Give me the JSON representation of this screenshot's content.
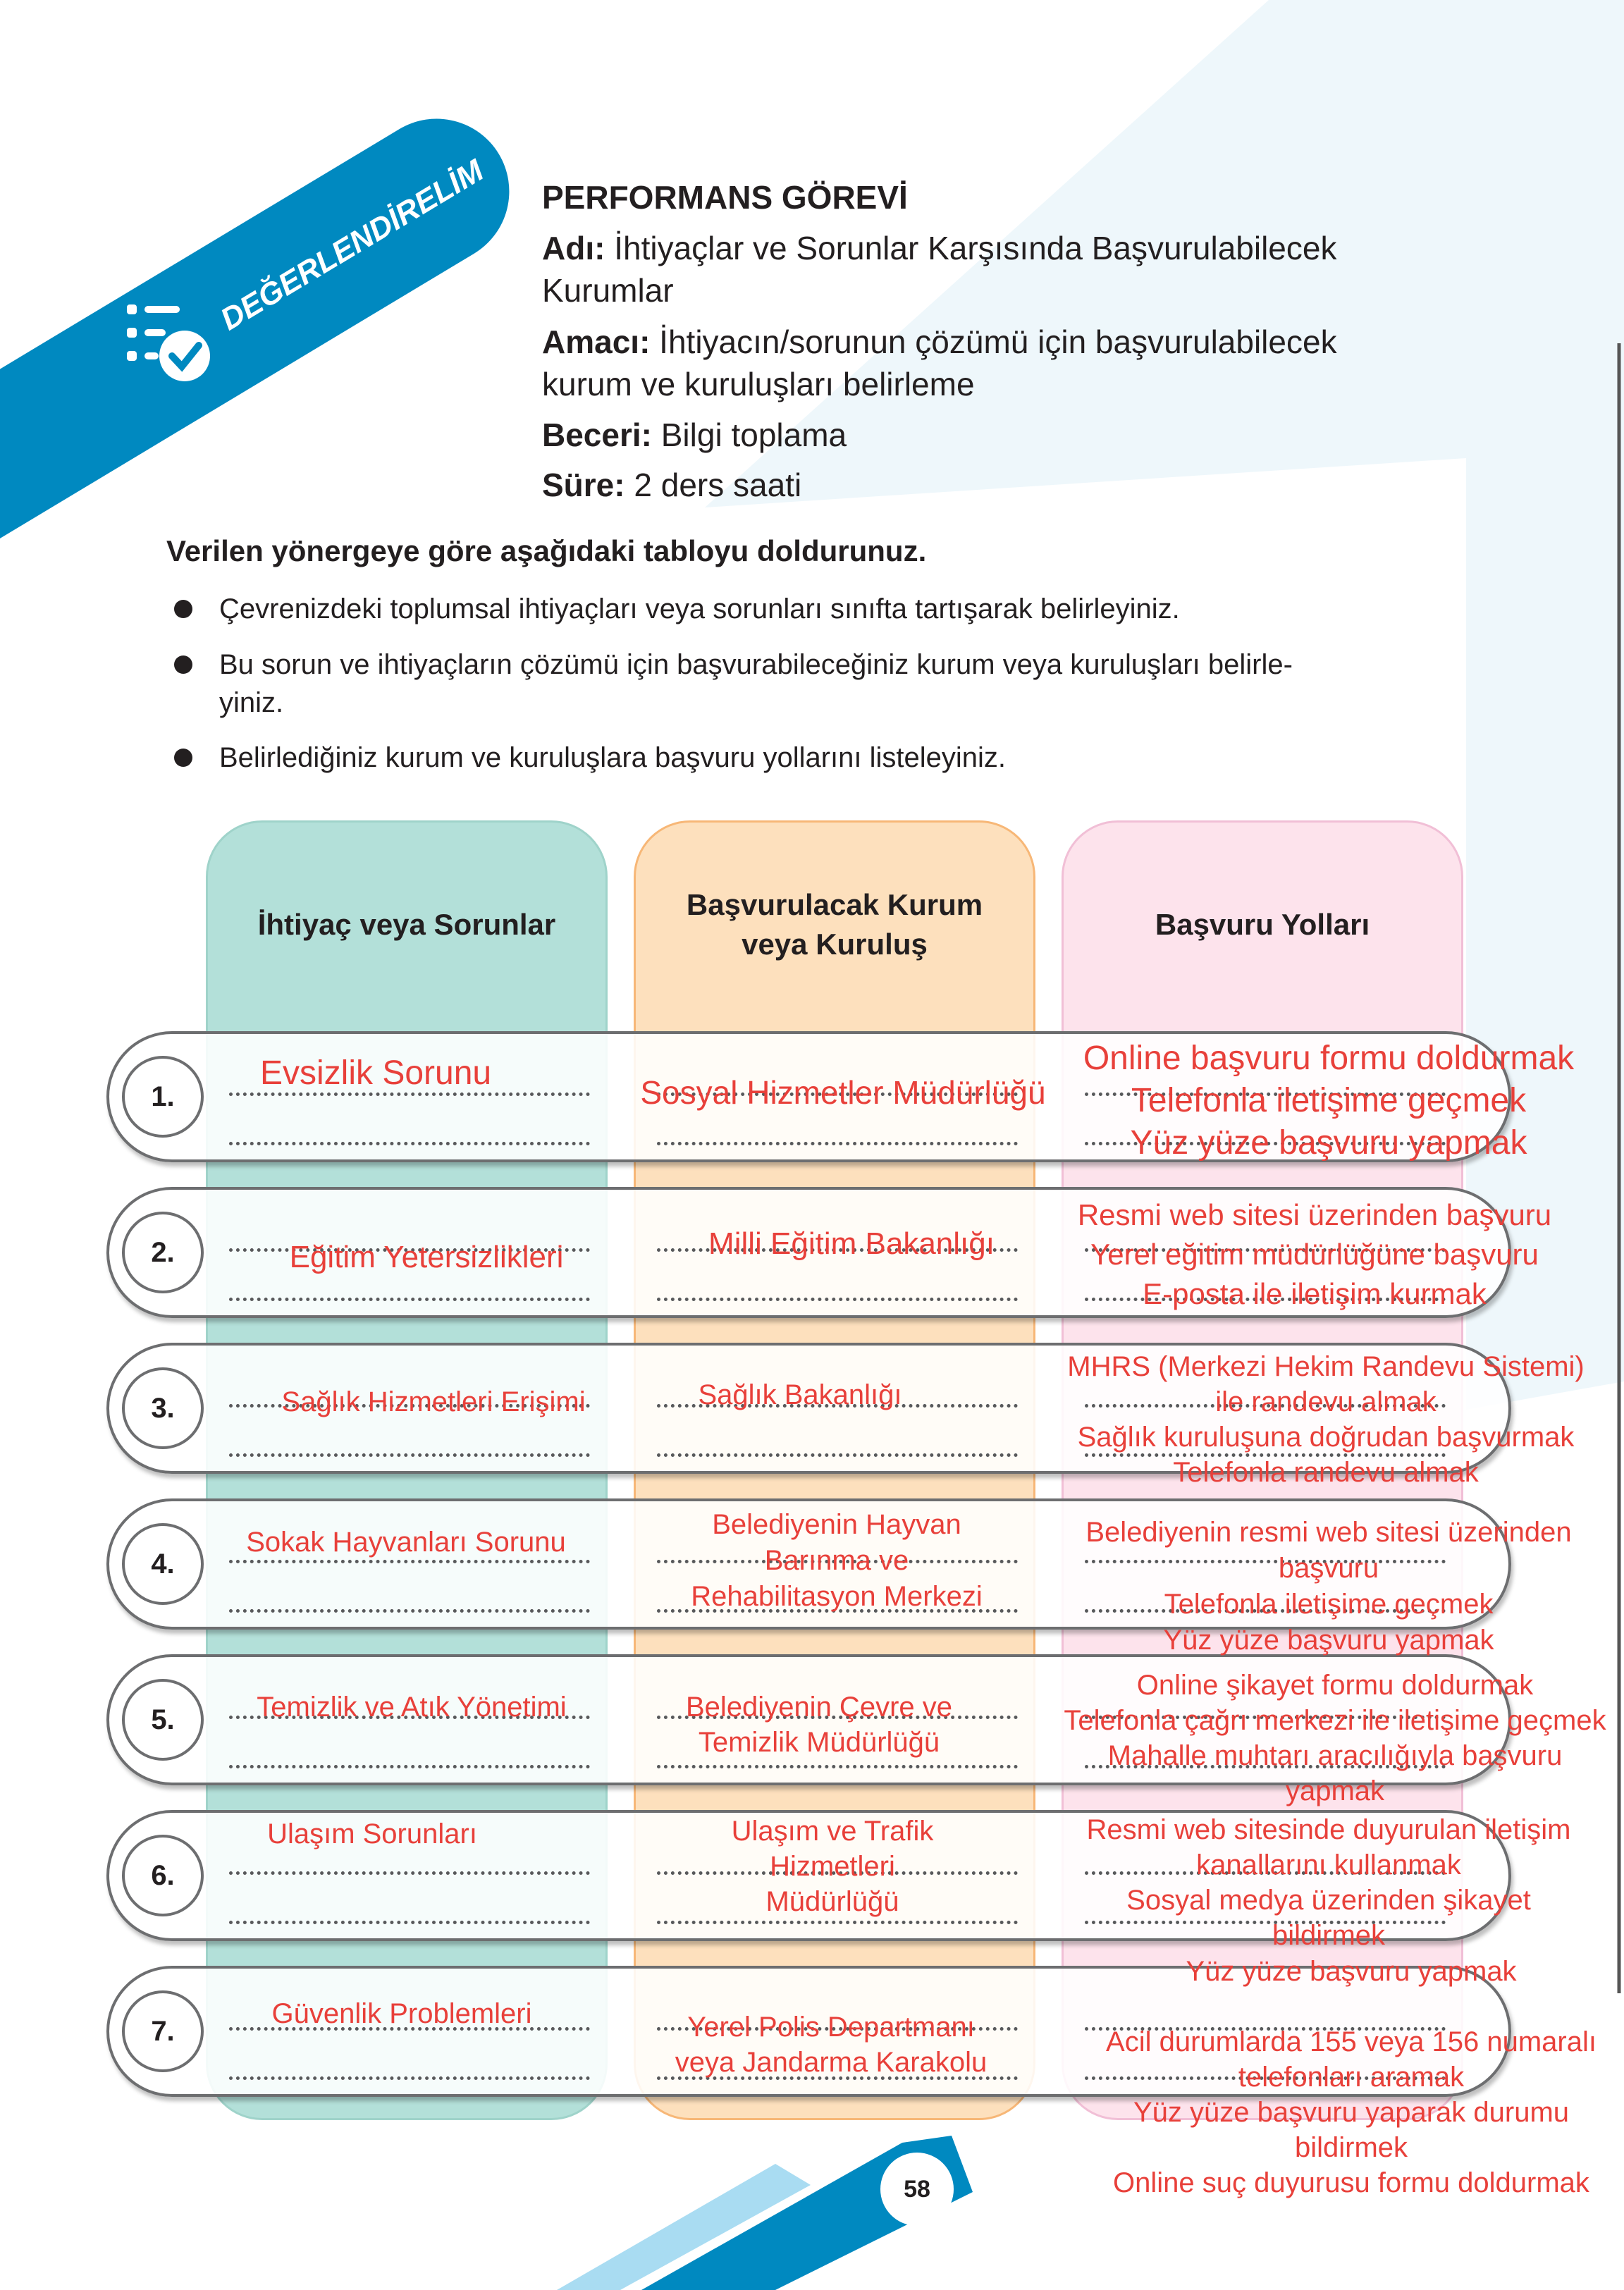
{
  "banner": {
    "label": "DEĞERLENDİRELİM",
    "icon": "checklist-icon",
    "color": "#0089c0"
  },
  "task": {
    "title": "PERFORMANS GÖREVİ",
    "name_label": "Adı:",
    "name_value": "İhtiyaçlar ve Sorunlar Karşısında Başvurulabilecek",
    "name_value_2": "Kurumlar",
    "purpose_label": "Amacı:",
    "purpose_value": "İhtiyacın/sorunun çözümü için başvurulabilecek",
    "purpose_value_2": "kurum ve kuruluşları belirleme",
    "skill_label": "Beceri:",
    "skill_value": "Bilgi toplama",
    "duration_label": "Süre:",
    "duration_value": "2 ders saati"
  },
  "instructions": {
    "heading": "Verilen yönergeye göre aşağıdaki tabloyu doldurunuz.",
    "bullets": [
      "Çevrenizdeki toplumsal ihtiyaçları veya sorunları sınıfta tartışarak belirleyiniz.",
      "Bu sorun ve ihtiyaçların çözümü için başvurabileceğiniz kurum veya kuruluşları belirle-\nyiniz.",
      "Belirlediğiniz kurum ve kuruluşlara başvuru yollarını listeleyiniz."
    ]
  },
  "table": {
    "headers": [
      "İhtiyaç veya Sorunlar",
      "Başvurulacak Kurum\nveya Kuruluş",
      "Başvuru Yolları"
    ],
    "colors": {
      "col1": "#b3e0d9",
      "col2": "#fde0bd",
      "col3": "#fde3ec",
      "answer_text": "#e8403a"
    },
    "rows": [
      {
        "number": "1.",
        "need": "Evsizlik Sorunu",
        "institution": "Sosyal Hizmetler Müdürlüğü",
        "methods": "Online başvuru formu doldurmak\nTelefonla iletişime geçmek\nYüz yüze başvuru yapmak"
      },
      {
        "number": "2.",
        "need": "Eğitim Yetersizlikleri",
        "institution": "Milli Eğitim Bakanlığı",
        "methods": "Resmi web sitesi üzerinden başvuru\nYerel eğitim müdürlüğüne başvuru\nE-posta ile iletişim kurmak"
      },
      {
        "number": "3.",
        "need": "Sağlık Hizmetleri Erişimi",
        "institution": "Sağlık Bakanlığı",
        "methods": "MHRS (Merkezi Hekim Randevu Sistemi)\nile randevu almak\nSağlık kuruluşuna doğrudan başvurmak\nTelefonla randevu almak"
      },
      {
        "number": "4.",
        "need": "Sokak Hayvanları Sorunu",
        "institution": "Belediyenin Hayvan\nBarınma ve\nRehabilitasyon Merkezi",
        "methods": "Belediyenin resmi web sitesi üzerinden\nbaşvuru\nTelefonla iletişime geçmek\nYüz yüze başvuru yapmak"
      },
      {
        "number": "5.",
        "need": "Temizlik ve Atık Yönetimi",
        "institution": "Belediyenin Çevre ve\nTemizlik Müdürlüğü",
        "methods": "Online şikayet formu doldurmak\nTelefonla çağrı merkezi ile iletişime geçmek\nMahalle muhtarı aracılığıyla başvuru\nyapmak"
      },
      {
        "number": "6.",
        "need": "Ulaşım Sorunları",
        "institution": "Ulaşım ve Trafik\nHizmetleri\nMüdürlüğü",
        "methods": "Resmi web sitesinde duyurulan iletişim\nkanallarını kullanmak\nSosyal medya üzerinden şikayet\nbildirmek"
      },
      {
        "number": "7.",
        "need": "Güvenlik Problemleri",
        "institution": "Yerel Polis Departmanı\nveya Jandarma Karakolu",
        "methods": "Yüz yüze başvuru yapmak\n\nAcil durumlarda 155 veya 156 numaralı\ntelefonları aramak\nYüz yüze başvuru yaparak durumu\nbildirmek\nOnline suç duyurusu formu doldurmak"
      }
    ]
  },
  "footer": {
    "page_number": "58"
  }
}
